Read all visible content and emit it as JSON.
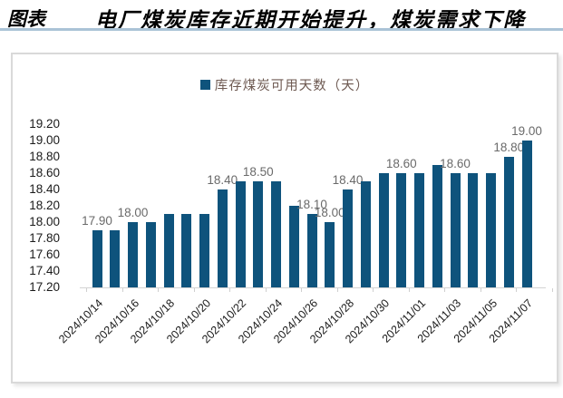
{
  "header": {
    "prefix": "图表",
    "title": "电厂煤炭库存近期开始提升，煤炭需求下降"
  },
  "legend": {
    "swatch_icon": "square-swatch-icon",
    "label": "库存煤炭可用天数（天）"
  },
  "colors": {
    "bar": "#0e537c",
    "legend_text": "#6e5a52",
    "data_label": "#6a6a6a",
    "axis_text": "#1a1a1a",
    "title_underline": "#aac3d6",
    "panel_border": "#d9d9d9"
  },
  "chart_data": {
    "type": "bar",
    "title": "库存煤炭可用天数（天）",
    "xlabel": "",
    "ylabel": "",
    "ylim": [
      17.2,
      19.2
    ],
    "y_tick_step": 0.2,
    "grid": false,
    "legend_position": "top-center",
    "categories": [
      "2024/10/14",
      "2024/10/15",
      "2024/10/16",
      "2024/10/17",
      "2024/10/18",
      "2024/10/19",
      "2024/10/20",
      "2024/10/21",
      "2024/10/22",
      "2024/10/23",
      "2024/10/24",
      "2024/10/25",
      "2024/10/26",
      "2024/10/27",
      "2024/10/28",
      "2024/10/29",
      "2024/10/30",
      "2024/10/31",
      "2024/11/01",
      "2024/11/02",
      "2024/11/03",
      "2024/11/04",
      "2024/11/05",
      "2024/11/06",
      "2024/11/07"
    ],
    "values": [
      17.9,
      17.9,
      18.0,
      18.0,
      18.1,
      18.1,
      18.1,
      18.4,
      18.5,
      18.5,
      18.5,
      18.2,
      18.1,
      18.0,
      18.4,
      18.5,
      18.6,
      18.6,
      18.6,
      18.7,
      18.6,
      18.6,
      18.6,
      18.8,
      19.0
    ],
    "data_labels": [
      "17.90",
      null,
      "18.00",
      null,
      null,
      null,
      null,
      "18.40",
      null,
      "18.50",
      null,
      null,
      "18.10",
      "18.00",
      "18.40",
      null,
      null,
      "18.60",
      null,
      null,
      "18.60",
      null,
      null,
      "18.80",
      "19.00"
    ],
    "y_tick_labels": [
      "19.20",
      "19.00",
      "18.80",
      "18.60",
      "18.40",
      "18.20",
      "18.00",
      "17.80",
      "17.60",
      "17.40",
      "17.20"
    ],
    "x_tick_labels": [
      "2024/10/14",
      "2024/10/16",
      "2024/10/18",
      "2024/10/20",
      "2024/10/22",
      "2024/10/24",
      "2024/10/26",
      "2024/10/28",
      "2024/10/30",
      "2024/11/01",
      "2024/11/03",
      "2024/11/05",
      "2024/11/07"
    ]
  }
}
